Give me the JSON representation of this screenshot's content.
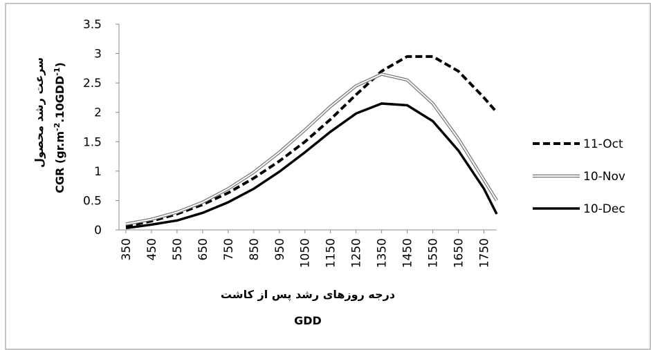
{
  "chart_data": {
    "type": "line",
    "y_title": "سرعت رشد محصول",
    "y_label": [
      "CGR (gr.m",
      "-2",
      ".10GDD",
      "-1",
      ")"
    ],
    "x_title": "درجه روزهای رشد پس از کاشت",
    "x_label": "GDD",
    "x": [
      350,
      450,
      550,
      650,
      750,
      850,
      950,
      1050,
      1150,
      1250,
      1350,
      1450,
      1550,
      1650,
      1750,
      1800
    ],
    "series": [
      {
        "name": "11-Oct",
        "color": "#000000",
        "style": "dashed",
        "values": [
          0.06,
          0.15,
          0.27,
          0.43,
          0.63,
          0.88,
          1.17,
          1.5,
          1.88,
          2.3,
          2.7,
          2.95,
          2.95,
          2.7,
          2.25,
          2.0
        ]
      },
      {
        "name": "10-Nov",
        "color": "#777777",
        "style": "double",
        "values": [
          0.1,
          0.18,
          0.3,
          0.47,
          0.7,
          0.98,
          1.32,
          1.7,
          2.1,
          2.45,
          2.65,
          2.55,
          2.15,
          1.55,
          0.85,
          0.5
        ]
      },
      {
        "name": "10-Dec",
        "color": "#000000",
        "style": "solid",
        "values": [
          0.03,
          0.09,
          0.16,
          0.29,
          0.47,
          0.7,
          0.99,
          1.32,
          1.67,
          1.98,
          2.15,
          2.12,
          1.85,
          1.35,
          0.7,
          0.27
        ]
      }
    ],
    "xlim": [
      323,
      1800
    ],
    "xticks": [
      350,
      450,
      550,
      650,
      750,
      850,
      950,
      1050,
      1150,
      1250,
      1350,
      1450,
      1550,
      1650,
      1750
    ],
    "ylim": [
      0,
      3.5
    ],
    "yticks": [
      0,
      0.5,
      1,
      1.5,
      2,
      2.5,
      3,
      3.5
    ],
    "grid": false,
    "legend": "right"
  }
}
